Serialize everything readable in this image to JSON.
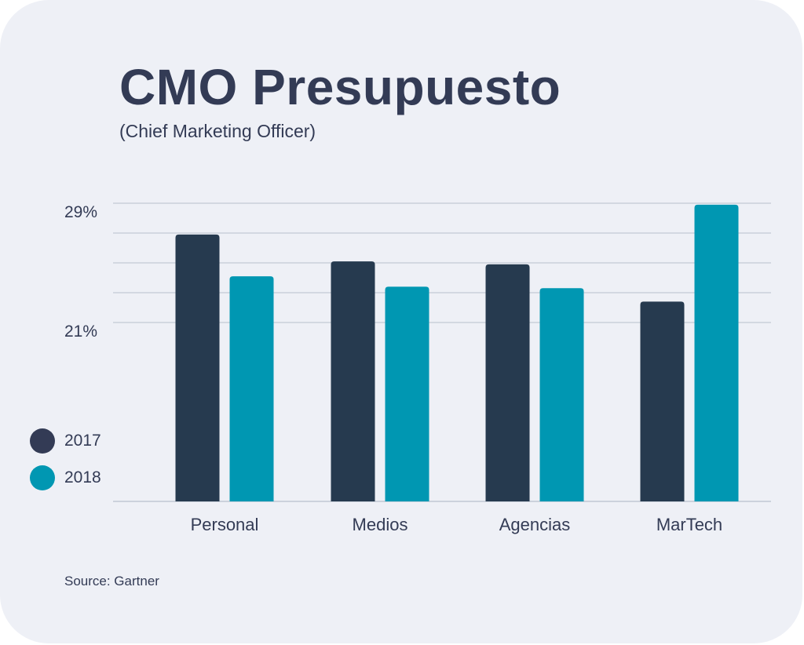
{
  "title": "CMO Presupuesto",
  "subtitle": "(Chief Marketing Officer)",
  "source": "Source: Gartner",
  "colors": {
    "background": "#eef0f6",
    "text": "#333b55",
    "series_2017": "#263a4f",
    "series_2018": "#0097b2",
    "gridline": "#b8bfcc"
  },
  "chart_data": {
    "type": "bar",
    "categories": [
      "Personal",
      "Medios",
      "Agencias",
      "MarTech"
    ],
    "series": [
      {
        "name": "2017",
        "values": [
          26.9,
          25.1,
          24.9,
          22.4
        ],
        "color": "#263a4f"
      },
      {
        "name": "2018",
        "values": [
          24.1,
          23.4,
          23.3,
          28.9
        ],
        "color": "#0097b2"
      }
    ],
    "y_ticks": [
      {
        "value": 29,
        "label": "29%"
      },
      {
        "value": 27,
        "label": ""
      },
      {
        "value": 25,
        "label": ""
      },
      {
        "value": 23,
        "label": ""
      },
      {
        "value": 21,
        "label": "21%"
      }
    ],
    "ylim": [
      9,
      29
    ],
    "grid": true,
    "legend_position": "bottom-left",
    "title": "CMO Presupuesto",
    "xlabel": "",
    "ylabel": ""
  }
}
